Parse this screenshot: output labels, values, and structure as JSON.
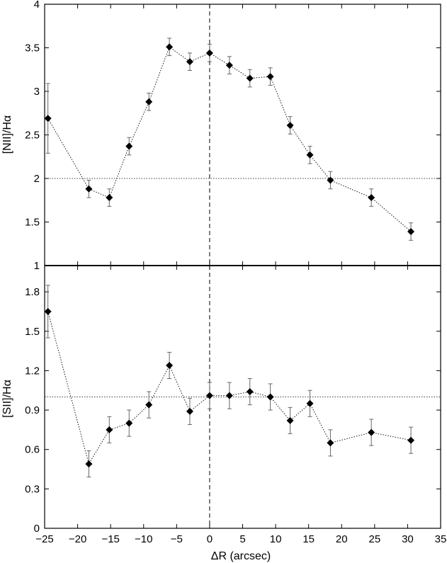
{
  "chart_data": [
    {
      "type": "scatter",
      "panel": "top",
      "ylabel": "[NII]/Hα",
      "xlim": [
        -25,
        35
      ],
      "ylim": [
        1,
        4
      ],
      "yticks": [
        1,
        1.5,
        2,
        2.5,
        3,
        3.5,
        4
      ],
      "ytick_labels": [
        "1",
        "1.5",
        "2",
        "2.5",
        "3",
        "3.5",
        "4"
      ],
      "reference_line_y": 2,
      "reference_line_x": 0,
      "connected": true,
      "marker": "diamond",
      "error_bars": true,
      "points": [
        {
          "x": -24.5,
          "y": 2.69,
          "err": 0.4
        },
        {
          "x": -18.3,
          "y": 1.88,
          "err": 0.1
        },
        {
          "x": -15.2,
          "y": 1.78,
          "err": 0.1
        },
        {
          "x": -12.2,
          "y": 2.37,
          "err": 0.1
        },
        {
          "x": -9.2,
          "y": 2.88,
          "err": 0.1
        },
        {
          "x": -6.1,
          "y": 3.51,
          "err": 0.1
        },
        {
          "x": -3.0,
          "y": 3.34,
          "err": 0.1
        },
        {
          "x": 0.0,
          "y": 3.44,
          "err": 0.1
        },
        {
          "x": 3.0,
          "y": 3.3,
          "err": 0.1
        },
        {
          "x": 6.1,
          "y": 3.15,
          "err": 0.1
        },
        {
          "x": 9.2,
          "y": 3.17,
          "err": 0.1
        },
        {
          "x": 12.2,
          "y": 2.61,
          "err": 0.1
        },
        {
          "x": 15.2,
          "y": 2.27,
          "err": 0.1
        },
        {
          "x": 18.3,
          "y": 1.98,
          "err": 0.1
        },
        {
          "x": 24.5,
          "y": 1.78,
          "err": 0.1
        },
        {
          "x": 30.5,
          "y": 1.39,
          "err": 0.1
        }
      ]
    },
    {
      "type": "scatter",
      "panel": "bottom",
      "xlabel": "ΔR (arcsec)",
      "ylabel": "[SII]/Hα",
      "xlim": [
        -25,
        35
      ],
      "ylim": [
        0,
        2
      ],
      "xticks": [
        -25,
        -20,
        -15,
        -10,
        -5,
        0,
        5,
        10,
        15,
        20,
        25,
        30,
        35
      ],
      "xtick_labels": [
        "−25",
        "−20",
        "−15",
        "−10",
        "−5",
        "0",
        "5",
        "10",
        "15",
        "20",
        "25",
        "30",
        "35"
      ],
      "yticks": [
        0,
        0.3,
        0.6,
        0.9,
        1.2,
        1.5,
        1.8
      ],
      "ytick_labels": [
        "0",
        "0.3",
        "0.6",
        "0.9",
        "1.2",
        "1.5",
        "1.8"
      ],
      "reference_line_y": 1,
      "reference_line_x": 0,
      "connected": true,
      "marker": "diamond",
      "error_bars": true,
      "points": [
        {
          "x": -24.5,
          "y": 1.65,
          "err": 0.2
        },
        {
          "x": -18.3,
          "y": 0.49,
          "err": 0.1
        },
        {
          "x": -15.2,
          "y": 0.75,
          "err": 0.1
        },
        {
          "x": -12.2,
          "y": 0.8,
          "err": 0.1
        },
        {
          "x": -9.2,
          "y": 0.94,
          "err": 0.1
        },
        {
          "x": -6.1,
          "y": 1.24,
          "err": 0.1
        },
        {
          "x": -3.0,
          "y": 0.89,
          "err": 0.1
        },
        {
          "x": 0.0,
          "y": 1.01,
          "err": 0.1
        },
        {
          "x": 3.0,
          "y": 1.01,
          "err": 0.1
        },
        {
          "x": 6.1,
          "y": 1.04,
          "err": 0.1
        },
        {
          "x": 9.2,
          "y": 1.0,
          "err": 0.1
        },
        {
          "x": 12.2,
          "y": 0.82,
          "err": 0.1
        },
        {
          "x": 15.2,
          "y": 0.95,
          "err": 0.1
        },
        {
          "x": 18.3,
          "y": 0.65,
          "err": 0.1
        },
        {
          "x": 24.5,
          "y": 0.73,
          "err": 0.1
        },
        {
          "x": 30.5,
          "y": 0.67,
          "err": 0.1
        }
      ]
    }
  ]
}
